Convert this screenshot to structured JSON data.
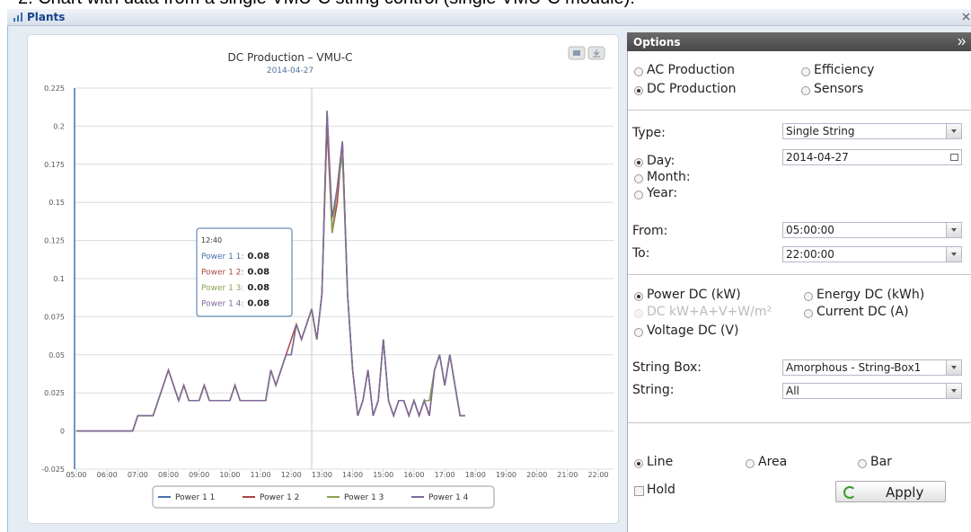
{
  "caption": "2. Chart with data from a single VMU-C string control (single VMU-C module).",
  "window": {
    "title": "Plants"
  },
  "chart_data": {
    "type": "line",
    "title": "DC Production – VMU-C",
    "subtitle": "2014-04-27",
    "x": [
      "05:00",
      "06:50",
      "07:00",
      "07:10",
      "07:20",
      "07:30",
      "07:40",
      "07:50",
      "08:00",
      "08:10",
      "08:20",
      "08:30",
      "08:40",
      "08:50",
      "09:00",
      "09:10",
      "09:20",
      "09:30",
      "09:40",
      "09:50",
      "10:00",
      "10:10",
      "10:20",
      "10:30",
      "10:40",
      "10:50",
      "11:00",
      "11:10",
      "11:20",
      "11:30",
      "11:40",
      "11:50",
      "12:00",
      "12:10",
      "12:20",
      "12:30",
      "12:40",
      "12:50",
      "13:00",
      "13:10",
      "13:20",
      "13:30",
      "13:40",
      "13:50",
      "14:00",
      "14:10",
      "14:20",
      "14:30",
      "14:40",
      "14:50",
      "15:00",
      "15:10",
      "15:20",
      "15:30",
      "15:40",
      "15:50",
      "16:00",
      "16:10",
      "16:20",
      "16:30",
      "16:40",
      "16:50",
      "17:00",
      "17:10",
      "17:20",
      "17:30",
      "17:40"
    ],
    "series": [
      {
        "name": "Power 1 1",
        "color": "#4572a7",
        "values": [
          0,
          0,
          0.01,
          0.01,
          0.01,
          0.01,
          0.02,
          0.03,
          0.04,
          0.03,
          0.02,
          0.03,
          0.02,
          0.02,
          0.02,
          0.03,
          0.02,
          0.02,
          0.02,
          0.02,
          0.02,
          0.03,
          0.02,
          0.02,
          0.02,
          0.02,
          0.02,
          0.02,
          0.04,
          0.03,
          0.04,
          0.05,
          0.05,
          0.07,
          0.06,
          0.07,
          0.08,
          0.06,
          0.09,
          0.21,
          0.13,
          0.16,
          0.19,
          0.09,
          0.04,
          0.01,
          0.02,
          0.04,
          0.01,
          0.02,
          0.06,
          0.02,
          0.01,
          0.02,
          0.02,
          0.01,
          0.02,
          0.01,
          0.02,
          0.01,
          0.04,
          0.05,
          0.03,
          0.05,
          0.03,
          0.01,
          0.01
        ]
      },
      {
        "name": "Power 1 2",
        "color": "#aa4643",
        "values": [
          0,
          0,
          0.01,
          0.01,
          0.01,
          0.01,
          0.02,
          0.03,
          0.04,
          0.03,
          0.02,
          0.03,
          0.02,
          0.02,
          0.02,
          0.03,
          0.02,
          0.02,
          0.02,
          0.02,
          0.02,
          0.03,
          0.02,
          0.02,
          0.02,
          0.02,
          0.02,
          0.02,
          0.04,
          0.03,
          0.04,
          0.05,
          0.06,
          0.07,
          0.06,
          0.07,
          0.08,
          0.06,
          0.09,
          0.2,
          0.13,
          0.15,
          0.19,
          0.09,
          0.04,
          0.01,
          0.02,
          0.04,
          0.01,
          0.02,
          0.06,
          0.02,
          0.01,
          0.02,
          0.02,
          0.01,
          0.02,
          0.01,
          0.02,
          0.01,
          0.04,
          0.05,
          0.03,
          0.05,
          0.03,
          0.01,
          0.01
        ]
      },
      {
        "name": "Power 1 3",
        "color": "#89a54e",
        "values": [
          0,
          0,
          0.01,
          0.01,
          0.01,
          0.01,
          0.02,
          0.03,
          0.04,
          0.03,
          0.02,
          0.03,
          0.02,
          0.02,
          0.02,
          0.03,
          0.02,
          0.02,
          0.02,
          0.02,
          0.02,
          0.03,
          0.02,
          0.02,
          0.02,
          0.02,
          0.02,
          0.02,
          0.04,
          0.03,
          0.04,
          0.05,
          0.05,
          0.07,
          0.06,
          0.07,
          0.08,
          0.06,
          0.09,
          0.21,
          0.13,
          0.16,
          0.18,
          0.09,
          0.04,
          0.01,
          0.02,
          0.04,
          0.01,
          0.02,
          0.06,
          0.02,
          0.01,
          0.02,
          0.02,
          0.01,
          0.02,
          0.01,
          0.02,
          0.02,
          0.04,
          0.05,
          0.03,
          0.05,
          0.03,
          0.01,
          0.01
        ]
      },
      {
        "name": "Power 1 4",
        "color": "#80699b",
        "values": [
          0,
          0,
          0.01,
          0.01,
          0.01,
          0.01,
          0.02,
          0.03,
          0.04,
          0.03,
          0.02,
          0.03,
          0.02,
          0.02,
          0.02,
          0.03,
          0.02,
          0.02,
          0.02,
          0.02,
          0.02,
          0.03,
          0.02,
          0.02,
          0.02,
          0.02,
          0.02,
          0.02,
          0.04,
          0.03,
          0.04,
          0.05,
          0.05,
          0.07,
          0.06,
          0.07,
          0.08,
          0.06,
          0.09,
          0.21,
          0.14,
          0.16,
          0.19,
          0.09,
          0.04,
          0.01,
          0.02,
          0.04,
          0.01,
          0.02,
          0.06,
          0.02,
          0.01,
          0.02,
          0.02,
          0.01,
          0.02,
          0.01,
          0.02,
          0.01,
          0.04,
          0.05,
          0.03,
          0.05,
          0.03,
          0.01,
          0.01
        ]
      }
    ],
    "xlim": [
      "05:00",
      "22:00"
    ],
    "xticks": [
      "05:00",
      "06:00",
      "07:00",
      "08:00",
      "09:00",
      "10:00",
      "11:00",
      "12:00",
      "13:00",
      "14:00",
      "15:00",
      "16:00",
      "17:00",
      "18:00",
      "19:00",
      "20:00",
      "21:00",
      "22:00"
    ],
    "ylim": [
      -0.025,
      0.225
    ],
    "yticks": [
      -0.025,
      0,
      0.025,
      0.05,
      0.075,
      0.1,
      0.125,
      0.15,
      0.175,
      0.2,
      0.225
    ],
    "grid": true,
    "legend": "bottom",
    "tooltip": {
      "x": "12:40",
      "rows": [
        {
          "label": "Power 1 1:",
          "value": 0.08
        },
        {
          "label": "Power 1 2:",
          "value": 0.08
        },
        {
          "label": "Power 1 3:",
          "value": 0.08
        },
        {
          "label": "Power 1 4:",
          "value": 0.08
        }
      ]
    }
  },
  "options": {
    "title": "Options",
    "kinds": [
      {
        "label": "AC Production",
        "checked": false
      },
      {
        "label": "Efficiency",
        "checked": false
      },
      {
        "label": "DC Production",
        "checked": true
      },
      {
        "label": "Sensors",
        "checked": false
      }
    ],
    "type": {
      "label": "Type:",
      "value": "Single String"
    },
    "periods": [
      {
        "label": "Day:",
        "checked": true
      },
      {
        "label": "Month:",
        "checked": false
      },
      {
        "label": "Year:",
        "checked": false
      }
    ],
    "date": "2014-04-27",
    "from": {
      "label": "From:",
      "value": "05:00:00"
    },
    "to": {
      "label": "To:",
      "value": "22:00:00"
    },
    "measures": [
      {
        "label": "Power DC (kW)",
        "checked": true,
        "disabled": false
      },
      {
        "label": "Energy DC (kWh)",
        "checked": false,
        "disabled": false
      },
      {
        "label": "DC kW+A+V+W/m²",
        "checked": false,
        "disabled": true
      },
      {
        "label": "Current DC (A)",
        "checked": false,
        "disabled": false
      },
      {
        "label": "Voltage DC (V)",
        "checked": false,
        "disabled": false
      }
    ],
    "string_box": {
      "label": "String Box:",
      "value": "Amorphous - String-Box1"
    },
    "string": {
      "label": "String:",
      "value": "All"
    },
    "styles": [
      {
        "label": "Line",
        "checked": true
      },
      {
        "label": "Area",
        "checked": false
      },
      {
        "label": "Bar",
        "checked": false
      }
    ],
    "hold": "Hold",
    "apply": "Apply"
  }
}
